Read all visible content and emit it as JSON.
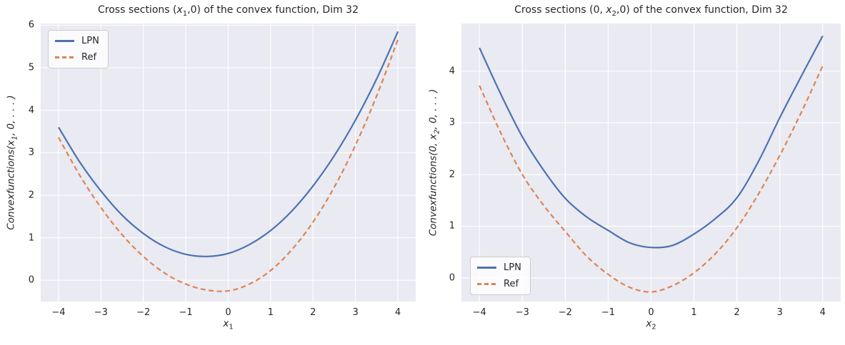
{
  "palette": {
    "lpn": "#4C72B0",
    "ref": "#DD8452",
    "axes_bg": "#EAEAF2",
    "grid": "#FFFFFF",
    "text": "#262626",
    "legend_border": "#CCCCCC"
  },
  "chart_data": [
    {
      "type": "line",
      "title": "Cross sections (x₁,0) of the convex function, Dim 32",
      "title_parts": {
        "pre": "Cross sections (",
        "var": "x",
        "sub": "1",
        "post": ",0) of the convex function, Dim 32"
      },
      "xlabel_parts": {
        "var": "x",
        "sub": "1"
      },
      "ylabel_parts": {
        "pre": "Convexfunctions(",
        "var": "x",
        "sub": "1",
        "post": ", 0, . . . )"
      },
      "xlim": [
        -4.42,
        4.42
      ],
      "ylim": [
        -0.5,
        6.04
      ],
      "xticks": [
        -4,
        -3,
        -2,
        -1,
        0,
        1,
        2,
        3,
        4
      ],
      "xtick_labels": [
        "−4",
        "−3",
        "−2",
        "−1",
        "0",
        "1",
        "2",
        "3",
        "4"
      ],
      "yticks": [
        0,
        1,
        2,
        3,
        4,
        5,
        6
      ],
      "ytick_labels": [
        "0",
        "1",
        "2",
        "3",
        "4",
        "5",
        "6"
      ],
      "grid": true,
      "legend_position": "upper-left",
      "x": [
        -4,
        -3.5,
        -3,
        -2.5,
        -2,
        -1.5,
        -1,
        -0.5,
        0,
        0.5,
        1,
        1.5,
        2,
        2.5,
        3,
        3.5,
        4
      ],
      "series": [
        {
          "name": "LPN",
          "style": "solid",
          "color_key": "lpn",
          "y": [
            3.6,
            2.78,
            2.1,
            1.53,
            1.1,
            0.79,
            0.61,
            0.56,
            0.63,
            0.84,
            1.17,
            1.63,
            2.22,
            2.93,
            3.77,
            4.74,
            5.85
          ]
        },
        {
          "name": "Ref",
          "style": "dashed",
          "color_key": "ref",
          "y": [
            3.36,
            2.47,
            1.71,
            1.07,
            0.56,
            0.17,
            -0.09,
            -0.23,
            -0.25,
            -0.09,
            0.23,
            0.72,
            1.37,
            2.19,
            3.18,
            4.34,
            5.66
          ]
        }
      ]
    },
    {
      "type": "line",
      "title": "Cross sections (0, x₂,0) of the convex function, Dim 32",
      "title_parts": {
        "pre": "Cross sections (0, ",
        "var": "x",
        "sub": "2",
        "post": ",0) of the convex function, Dim 32"
      },
      "xlabel_parts": {
        "var": "x",
        "sub": "2"
      },
      "ylabel_parts": {
        "pre": "Convexfunctions(0, ",
        "var": "x",
        "sub": "2",
        "post": ", 0, . . . )"
      },
      "xlim": [
        -4.42,
        4.42
      ],
      "ylim": [
        -0.455,
        4.92
      ],
      "xticks": [
        -4,
        -3,
        -2,
        -1,
        0,
        1,
        2,
        3,
        4
      ],
      "xtick_labels": [
        "−4",
        "−3",
        "−2",
        "−1",
        "0",
        "1",
        "2",
        "3",
        "4"
      ],
      "yticks": [
        0,
        1,
        2,
        3,
        4
      ],
      "ytick_labels": [
        "0",
        "1",
        "2",
        "3",
        "4"
      ],
      "grid": true,
      "legend_position": "lower-left",
      "x": [
        -4,
        -3.5,
        -3,
        -2.5,
        -2,
        -1.5,
        -1,
        -0.5,
        0,
        0.5,
        1,
        1.5,
        2,
        2.5,
        3,
        3.5,
        4
      ],
      "series": [
        {
          "name": "LPN",
          "style": "solid",
          "color_key": "lpn",
          "y": [
            4.45,
            3.55,
            2.73,
            2.08,
            1.54,
            1.18,
            0.92,
            0.68,
            0.59,
            0.63,
            0.85,
            1.15,
            1.55,
            2.25,
            3.1,
            3.9,
            4.68
          ]
        },
        {
          "name": "Ref",
          "style": "dashed",
          "color_key": "ref",
          "y": [
            3.72,
            2.8,
            2.0,
            1.4,
            0.9,
            0.42,
            0.07,
            -0.18,
            -0.27,
            -0.15,
            0.1,
            0.47,
            0.97,
            1.62,
            2.37,
            3.2,
            4.1
          ]
        }
      ]
    }
  ]
}
